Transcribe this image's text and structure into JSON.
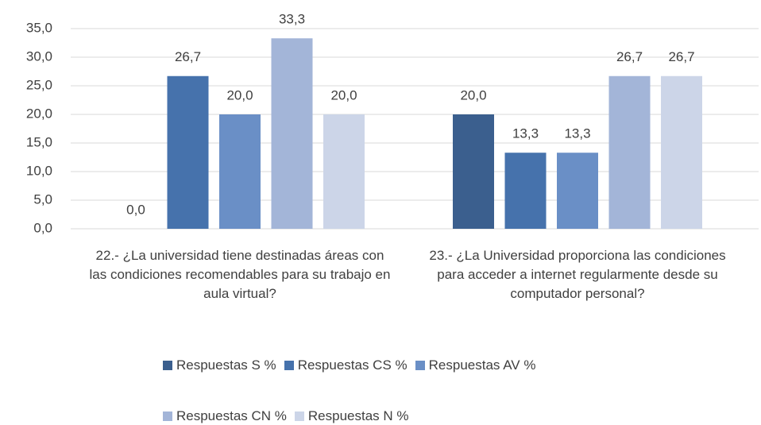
{
  "chart_data": {
    "type": "bar",
    "categories": [
      "22.- ¿La universidad tiene destinadas áreas con las condiciones recomendables para su trabajo en aula virtual?",
      "23.- ¿La Universidad proporciona las condiciones para acceder a internet regularmente desde su computador personal?"
    ],
    "series": [
      {
        "name": "Respuestas S %",
        "color": "#3b5f8e",
        "values": [
          0,
          20
        ],
        "value_labels": [
          "0,0",
          "20,0"
        ]
      },
      {
        "name": "Respuestas CS %",
        "color": "#4672ac",
        "values": [
          26.7,
          13.3
        ],
        "value_labels": [
          "26,7",
          "13,3"
        ]
      },
      {
        "name": "Respuestas AV %",
        "color": "#6a8fc6",
        "values": [
          20,
          13.3
        ],
        "value_labels": [
          "20,0",
          "13,3"
        ]
      },
      {
        "name": "Respuestas CN %",
        "color": "#a3b5d8",
        "values": [
          33.3,
          26.7
        ],
        "value_labels": [
          "33,3",
          "26,7"
        ]
      },
      {
        "name": "Respuestas N %",
        "color": "#ccd5e8",
        "values": [
          20,
          26.7
        ],
        "value_labels": [
          "20,0",
          "26,7"
        ]
      }
    ],
    "ylim": [
      0,
      35
    ],
    "yticks": [
      {
        "value": 0,
        "label": "0,0"
      },
      {
        "value": 5,
        "label": "5,0"
      },
      {
        "value": 10,
        "label": "10,0"
      },
      {
        "value": 15,
        "label": "15,0"
      },
      {
        "value": 20,
        "label": "20,0"
      },
      {
        "value": 25,
        "label": "25,0"
      },
      {
        "value": 30,
        "label": "30,0"
      },
      {
        "value": 35,
        "label": "35,0"
      }
    ],
    "grid": true,
    "legend": "bottom"
  }
}
